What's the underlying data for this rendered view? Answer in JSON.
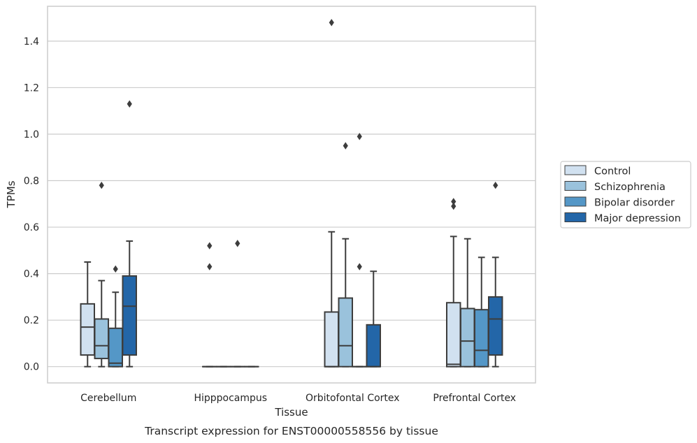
{
  "chart_data": {
    "type": "box",
    "caption": "Transcript expression for ENST00000558556 by tissue",
    "xlabel": "Tissue",
    "ylabel": "TPMs",
    "ylim": [
      -0.07,
      1.55
    ],
    "yticks": [
      "0.0",
      "0.2",
      "0.4",
      "0.6",
      "0.8",
      "1.0",
      "1.2",
      "1.4"
    ],
    "grid": "horizontal",
    "legend_position": "right",
    "categories": [
      "Cerebellum",
      "Hipppocampus",
      "Orbitofontal Cortex",
      "Prefrontal Cortex"
    ],
    "series": [
      {
        "name": "Control",
        "color": "#d1e1f0",
        "boxes": [
          {
            "whislo": 0.0,
            "q1": 0.05,
            "med": 0.17,
            "q3": 0.27,
            "whishi": 0.45,
            "fliers": []
          },
          {
            "whislo": 0.0,
            "q1": 0.0,
            "med": 0.0,
            "q3": 0.0,
            "whishi": 0.0,
            "fliers": [
              0.43,
              0.52
            ]
          },
          {
            "whislo": 0.0,
            "q1": 0.0,
            "med": 0.0,
            "q3": 0.235,
            "whishi": 0.58,
            "fliers": [
              1.48
            ]
          },
          {
            "whislo": 0.0,
            "q1": 0.0,
            "med": 0.01,
            "q3": 0.275,
            "whishi": 0.56,
            "fliers": [
              0.69,
              0.71
            ]
          }
        ]
      },
      {
        "name": "Schizophrenia",
        "color": "#9ac2dc",
        "boxes": [
          {
            "whislo": 0.0,
            "q1": 0.035,
            "med": 0.09,
            "q3": 0.205,
            "whishi": 0.37,
            "fliers": [
              0.78
            ]
          },
          {
            "whislo": 0.0,
            "q1": 0.0,
            "med": 0.0,
            "q3": 0.0,
            "whishi": 0.0,
            "fliers": []
          },
          {
            "whislo": 0.0,
            "q1": 0.0,
            "med": 0.09,
            "q3": 0.295,
            "whishi": 0.55,
            "fliers": [
              0.95
            ]
          },
          {
            "whislo": 0.0,
            "q1": 0.0,
            "med": 0.11,
            "q3": 0.25,
            "whishi": 0.55,
            "fliers": []
          }
        ]
      },
      {
        "name": "Bipolar disorder",
        "color": "#5497c7",
        "boxes": [
          {
            "whislo": 0.0,
            "q1": 0.0,
            "med": 0.015,
            "q3": 0.165,
            "whishi": 0.32,
            "fliers": [
              0.42
            ]
          },
          {
            "whislo": 0.0,
            "q1": 0.0,
            "med": 0.0,
            "q3": 0.0,
            "whishi": 0.0,
            "fliers": [
              0.53
            ]
          },
          {
            "whislo": 0.0,
            "q1": 0.0,
            "med": 0.0,
            "q3": 0.0,
            "whishi": 0.0,
            "fliers": [
              0.43,
              0.99
            ]
          },
          {
            "whislo": 0.0,
            "q1": 0.0,
            "med": 0.07,
            "q3": 0.245,
            "whishi": 0.47,
            "fliers": []
          }
        ]
      },
      {
        "name": "Major depression",
        "color": "#2366a8",
        "boxes": [
          {
            "whislo": 0.0,
            "q1": 0.05,
            "med": 0.26,
            "q3": 0.39,
            "whishi": 0.54,
            "fliers": [
              1.13
            ]
          },
          {
            "whislo": 0.0,
            "q1": 0.0,
            "med": 0.0,
            "q3": 0.0,
            "whishi": 0.0,
            "fliers": []
          },
          {
            "whislo": 0.0,
            "q1": 0.0,
            "med": 0.0,
            "q3": 0.18,
            "whishi": 0.41,
            "fliers": []
          },
          {
            "whislo": 0.0,
            "q1": 0.05,
            "med": 0.205,
            "q3": 0.3,
            "whishi": 0.47,
            "fliers": [
              0.78
            ]
          }
        ]
      }
    ]
  },
  "colors": {
    "grid": "#cccccc",
    "frame": "#cccccc",
    "edge": "#3d3d3d",
    "flier": "#3d3d3d",
    "text": "#262626",
    "background": "#ffffff"
  }
}
